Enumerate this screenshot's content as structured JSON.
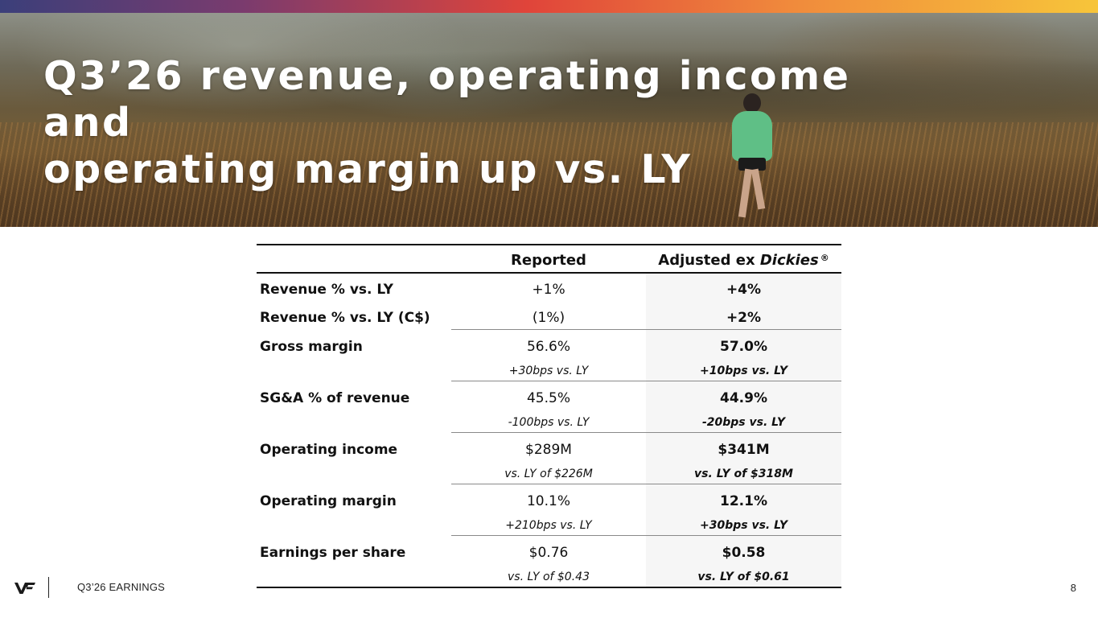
{
  "slide": {
    "title_line1": "Q3’26 revenue, operating income and",
    "title_line2": "operating margin up vs. LY",
    "page_number": "8"
  },
  "footer": {
    "label": "Q3’26 EARNINGS",
    "logo_icon": "vf-logo-icon"
  },
  "colors": {
    "band": [
      "#3b3f7a",
      "#e0443a",
      "#f08a3c",
      "#f7c53a"
    ],
    "adjusted_column_bg": "#f6f6f6"
  },
  "table": {
    "headers": {
      "reported": "Reported",
      "adjusted_prefix": "Adjusted ex ",
      "adjusted_brand": "Dickies",
      "adjusted_reg": "®"
    },
    "rows": [
      {
        "label": "Revenue % vs. LY",
        "reported": "+1%",
        "adjusted": "+4%"
      },
      {
        "label": "Revenue % vs. LY (C$)",
        "reported": "(1%)",
        "adjusted": "+2%"
      },
      {
        "label": "Gross margin",
        "reported": "56.6%",
        "adjusted": "57.0%",
        "reported_sub": "+30bps vs. LY",
        "adjusted_sub": "+10bps vs. LY"
      },
      {
        "label": "SG&A % of revenue",
        "reported": "45.5%",
        "adjusted": "44.9%",
        "reported_sub": "-100bps vs. LY",
        "adjusted_sub": "-20bps vs. LY"
      },
      {
        "label": "Operating income",
        "reported": "$289M",
        "adjusted": "$341M",
        "reported_sub": "vs. LY of $226M",
        "adjusted_sub": "vs. LY of $318M"
      },
      {
        "label": "Operating margin",
        "reported": "10.1%",
        "adjusted": "12.1%",
        "reported_sub": "+210bps vs. LY",
        "adjusted_sub": "+30bps vs. LY"
      },
      {
        "label": "Earnings per share",
        "reported": "$0.76",
        "adjusted": "$0.58",
        "reported_sub": "vs. LY of $0.43",
        "adjusted_sub": "vs. LY of $0.61"
      }
    ]
  }
}
